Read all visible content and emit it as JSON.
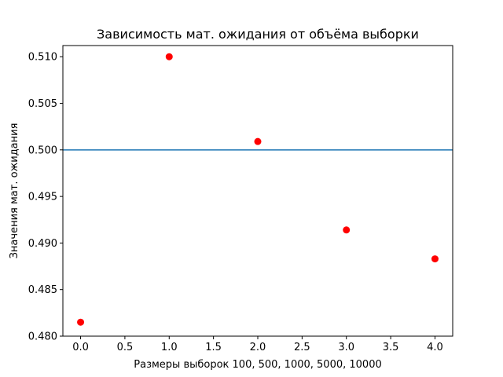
{
  "chart_data": {
    "type": "scatter",
    "title": "Зависимость мат. ожидания от объёма выборки",
    "xlabel": "Размеры выборок 100, 500, 1000, 5000, 10000",
    "ylabel": "Значения мат. ожидания",
    "xlim": [
      -0.2,
      4.2
    ],
    "ylim": [
      0.48,
      0.5112
    ],
    "xticks": [
      0.0,
      0.5,
      1.0,
      1.5,
      2.0,
      2.5,
      3.0,
      3.5,
      4.0
    ],
    "xtick_labels": [
      "0.0",
      "0.5",
      "1.0",
      "1.5",
      "2.0",
      "2.5",
      "3.0",
      "3.5",
      "4.0"
    ],
    "yticks": [
      0.48,
      0.485,
      0.49,
      0.495,
      0.5,
      0.505,
      0.51
    ],
    "ytick_labels": [
      "0.480",
      "0.485",
      "0.490",
      "0.495",
      "0.500",
      "0.505",
      "0.510"
    ],
    "series": [
      {
        "x": [
          0,
          1,
          2,
          3,
          4
        ],
        "y": [
          0.4815,
          0.51,
          0.5009,
          0.4914,
          0.4883
        ],
        "color": "#ff0000",
        "marker": "circle"
      }
    ],
    "reference_line": {
      "y": 0.5,
      "color": "#1f77b4"
    },
    "grid": false,
    "legend": "none"
  }
}
